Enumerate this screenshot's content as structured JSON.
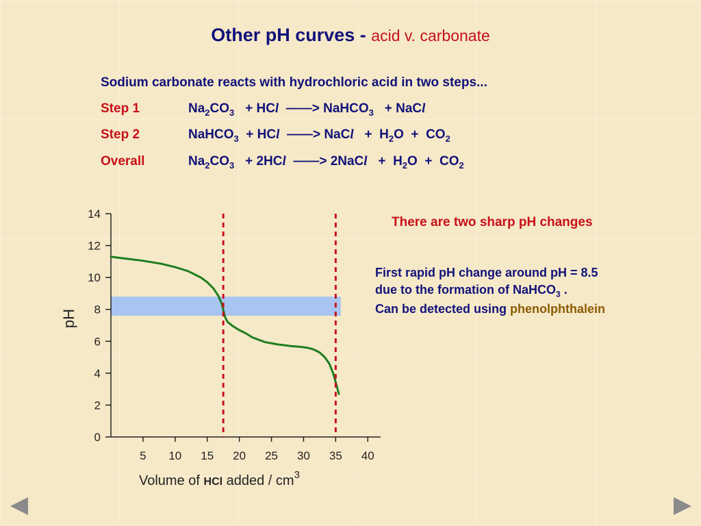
{
  "slide": {
    "title_main": "Other pH curves - ",
    "title_sub": "acid v. carbonate",
    "intro": "Sodium carbonate reacts with hydrochloric acid in two steps...",
    "equations": [
      {
        "label": "Step 1",
        "html": "Na<sub>2</sub>CO<sub>3</sub> &nbsp; + HC<i>l</i> &nbsp;——&gt; NaHCO<sub>3</sub> &nbsp; + NaC<i>l</i>"
      },
      {
        "label": "Step 2",
        "html": "NaHCO<sub>3</sub> &nbsp;+ HC<i>l</i> &nbsp;——&gt; NaC<i>l</i> &nbsp; + &nbsp;H<sub>2</sub>O &nbsp;+ &nbsp;CO<sub>2</sub>"
      },
      {
        "label": "Overall",
        "html": "Na<sub>2</sub>CO<sub>3</sub> &nbsp; + 2HC<i>l</i> &nbsp;——&gt; 2NaC<i>l</i> &nbsp; + &nbsp;H<sub>2</sub>O &nbsp;+ &nbsp;CO<sub>2</sub>"
      }
    ],
    "note_heading": "There are two sharp pH changes",
    "note_line1": "First rapid pH change around pH = 8.5",
    "note_line2_pre": "due to the formation of NaHCO",
    "note_line2_sub": "3",
    "note_line2_post": " .",
    "note_line3_pre": "Can be detected using ",
    "note_line3_indicator": "phenolphthalein",
    "colors": {
      "title": "#12127a",
      "accent": "#c8101a",
      "indicator": "#8b5a00",
      "curve": "#1e7d1e",
      "band": "#a8c4f0",
      "markers": "#c8101a"
    },
    "nav": {
      "prev_icon": "triangle-left",
      "next_icon": "triangle-right"
    }
  },
  "chart_data": {
    "type": "line",
    "xlabel_pre": "Volume of ",
    "xlabel_hcl": "HCl",
    "xlabel_post": " added / cm",
    "xlabel_sup": "3",
    "ylabel": "pH",
    "xlim": [
      0,
      42
    ],
    "ylim": [
      0,
      14
    ],
    "x_ticks": [
      5,
      10,
      15,
      20,
      25,
      30,
      35,
      40
    ],
    "y_ticks": [
      0,
      2,
      4,
      6,
      8,
      10,
      12,
      14
    ],
    "series": [
      {
        "x": [
          0,
          2,
          5,
          8,
          10,
          12,
          14,
          15,
          16,
          16.8,
          17.3,
          17.6,
          17.8,
          18.2,
          19,
          20,
          21,
          22,
          24,
          26,
          28,
          29.5,
          30.5,
          31.5,
          32.5,
          33.3,
          34,
          34.6,
          35.1,
          35.5
        ],
        "y": [
          11.3,
          11.2,
          11.05,
          10.85,
          10.65,
          10.4,
          10.0,
          9.7,
          9.3,
          8.8,
          8.3,
          7.8,
          7.5,
          7.2,
          6.95,
          6.7,
          6.5,
          6.25,
          5.95,
          5.8,
          5.7,
          5.65,
          5.6,
          5.5,
          5.3,
          5.0,
          4.6,
          4.0,
          3.3,
          2.7
        ]
      }
    ],
    "equivalence_lines_x": [
      17.5,
      35
    ],
    "indicator_band_y": [
      7.6,
      8.8
    ],
    "grid": false,
    "legend": "none"
  }
}
